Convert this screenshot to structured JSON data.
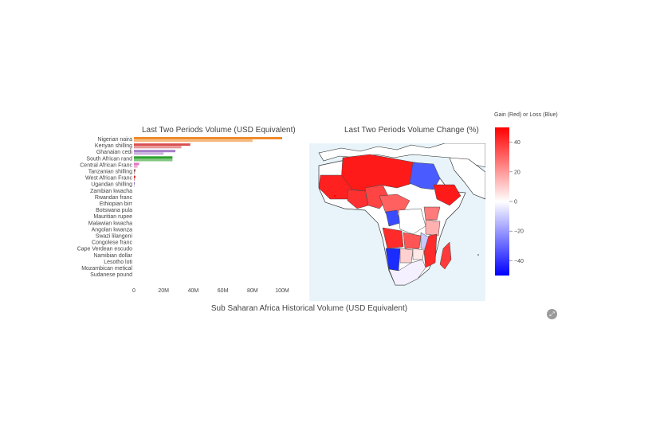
{
  "bar_title": "Last Two Periods Volume (USD Equivalent)",
  "map_title": "Last Two Periods Volume Change (%)",
  "bottom_title": "Sub Saharan Africa Historical Volume (USD Equivalent)",
  "colorbar_title": "Gain (Red) or Loss (Blue)",
  "chart_data": [
    {
      "type": "bar",
      "orientation": "horizontal",
      "title": "Last Two Periods Volume (USD Equivalent)",
      "categories": [
        "Nigerian naira",
        "Kenyan shilling",
        "Ghanaian cedi",
        "South African rand",
        "Central African Franc",
        "Tanzanian shilling",
        "West African Franc",
        "Ugandan shilling",
        "Zambian kwacha",
        "Rwandan franc",
        "Ethiopian birr",
        "Botswana pula",
        "Mauritian rupee",
        "Malawian kwacha",
        "Angolan kwanza",
        "Swazi lilangeni",
        "Congolese franc",
        "Cape Verdean escudo",
        "Namibian dollar",
        "Lesotho loti",
        "Mozambican metical",
        "Sudanese pound"
      ],
      "series": [
        {
          "values": [
            100,
            38,
            28,
            26,
            3.5,
            1,
            1,
            0.5,
            0,
            0,
            0,
            0,
            0,
            0,
            0,
            0,
            0,
            0,
            0,
            0,
            0,
            0
          ]
        },
        {
          "values": [
            80,
            32,
            20,
            26,
            2.5,
            0.5,
            0.5,
            0.3,
            0,
            0,
            0,
            0,
            0,
            0,
            0,
            0,
            0,
            0,
            0,
            0,
            0,
            0
          ]
        }
      ],
      "bar_colors": [
        "#f08a2b",
        "#d94f4f",
        "#a67ec8",
        "#2ca02c",
        "#e377c2",
        "#8c564b",
        "#d62728",
        "#9467bd",
        "#cccccc",
        "#cccccc",
        "#cccccc",
        "#cccccc",
        "#cccccc",
        "#cccccc",
        "#cccccc",
        "#cccccc",
        "#cccccc",
        "#cccccc",
        "#cccccc",
        "#cccccc",
        "#cccccc",
        "#cccccc"
      ],
      "xticks": [
        0,
        20,
        40,
        60,
        80,
        100
      ],
      "xtick_labels": [
        "0",
        "20M",
        "40M",
        "60M",
        "80M",
        "100M"
      ],
      "xlim": [
        0,
        100
      ]
    },
    {
      "type": "heatmap",
      "title": "Last Two Periods Volume Change (%)",
      "colorscale": [
        "#0000ff",
        "#ffffff",
        "#ff0000"
      ],
      "range": [
        -50,
        50
      ],
      "colorbar_ticks": [
        40,
        20,
        0,
        -20,
        -40
      ],
      "colorbar_tick_labels": [
        "40",
        "20",
        "0",
        "−20",
        "−40"
      ]
    }
  ]
}
